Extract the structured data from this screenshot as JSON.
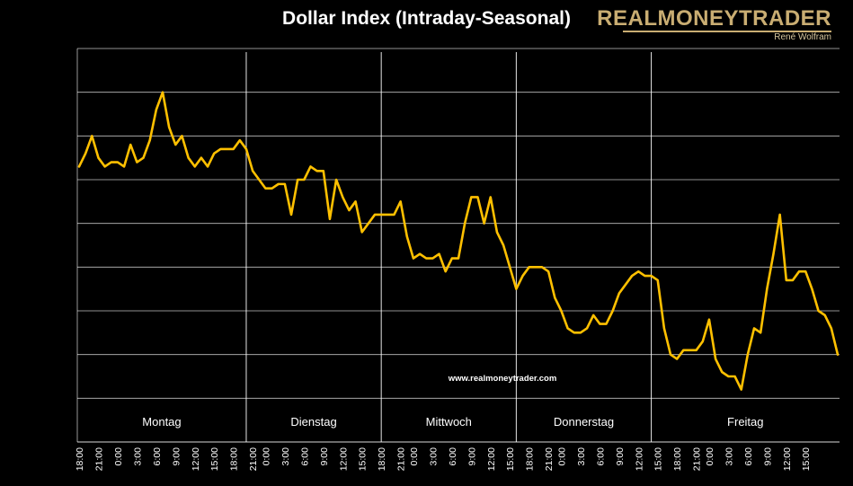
{
  "header": {
    "title": "Dollar Index (Intraday-Seasonal)",
    "logo_name": "REALMONEYTRADER",
    "logo_author": "René Wolfram"
  },
  "colors": {
    "line": "#ffc000",
    "grid": "#ffffff",
    "background": "#000000",
    "logo": "#c9ad72"
  },
  "chart_data": {
    "type": "line",
    "title": "Dollar Index (Intraday-Seasonal)",
    "watermark": "www.realmoneytrader.com",
    "xlabel": "",
    "ylabel": "",
    "y_ticks_shown": false,
    "ylim": [
      0,
      9
    ],
    "grid": true,
    "day_labels": [
      "Montag",
      "Dienstag",
      "Mittwoch",
      "Donnerstag",
      "Freitag"
    ],
    "day_separators_at_index": [
      26,
      47,
      68,
      89
    ],
    "x_tick_labels": [
      "18:00",
      "21:00",
      "0:00",
      "3:00",
      "6:00",
      "9:00",
      "12:00",
      "15:00",
      "18:00",
      "21:00",
      "0:00",
      "3:00",
      "6:00",
      "9:00",
      "12:00",
      "15:00",
      "18:00",
      "21:00",
      "0:00",
      "3:00",
      "6:00",
      "9:00",
      "12:00",
      "15:00",
      "18:00",
      "21:00",
      "0:00",
      "3:00",
      "6:00",
      "9:00",
      "12:00",
      "15:00",
      "18:00",
      "21:00",
      "0:00",
      "3:00",
      "6:00",
      "9:00",
      "12:00",
      "15:00"
    ],
    "x_tick_indices": [
      0,
      3,
      6,
      9,
      12,
      15,
      18,
      21,
      24,
      27,
      29,
      32,
      35,
      38,
      41,
      44,
      47,
      50,
      52,
      55,
      58,
      61,
      64,
      67,
      70,
      73,
      75,
      78,
      81,
      84,
      87,
      90,
      93,
      96,
      98,
      101,
      104,
      107,
      110,
      113
    ],
    "series": [
      {
        "name": "Dollar Index",
        "values": [
          6.3,
          6.6,
          7.0,
          6.5,
          6.3,
          6.4,
          6.4,
          6.3,
          6.8,
          6.4,
          6.5,
          6.9,
          7.6,
          8.0,
          7.2,
          6.8,
          7.0,
          6.5,
          6.3,
          6.5,
          6.3,
          6.6,
          6.7,
          6.7,
          6.7,
          6.9,
          6.7,
          6.2,
          6.0,
          5.8,
          5.8,
          5.9,
          5.9,
          5.2,
          6.0,
          6.0,
          6.3,
          6.2,
          6.2,
          5.1,
          6.0,
          5.6,
          5.3,
          5.5,
          4.8,
          5.0,
          5.2,
          5.2,
          5.2,
          5.2,
          5.5,
          4.7,
          4.2,
          4.3,
          4.2,
          4.2,
          4.3,
          3.9,
          4.2,
          4.2,
          5.0,
          5.6,
          5.6,
          5.0,
          5.6,
          4.8,
          4.5,
          4.0,
          3.5,
          3.8,
          4.0,
          4.0,
          4.0,
          3.9,
          3.3,
          3.0,
          2.6,
          2.5,
          2.5,
          2.6,
          2.9,
          2.7,
          2.7,
          3.0,
          3.4,
          3.6,
          3.8,
          3.9,
          3.8,
          3.8,
          3.7,
          2.6,
          2.0,
          1.9,
          2.1,
          2.1,
          2.1,
          2.3,
          2.8,
          1.9,
          1.6,
          1.5,
          1.5,
          1.2,
          2.0,
          2.6,
          2.5,
          3.5,
          4.3,
          5.2,
          3.7,
          3.7,
          3.9,
          3.9,
          3.5,
          3.0,
          2.9,
          2.6,
          2.0
        ]
      }
    ]
  }
}
